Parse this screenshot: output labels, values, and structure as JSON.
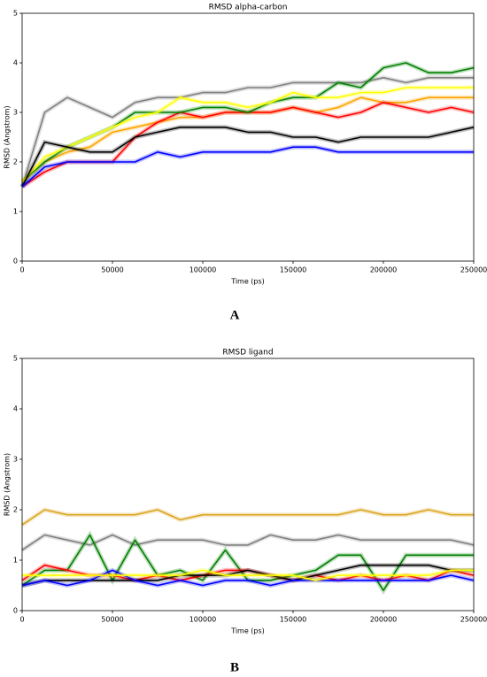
{
  "chart_data": [
    {
      "type": "line",
      "title": "RMSD alpha-carbon",
      "x_label": "Time (ps)",
      "y_label": "RMSD (Angstrom)",
      "panel_label": "A",
      "x": [
        0,
        12500,
        25000,
        37500,
        50000,
        62500,
        75000,
        87500,
        100000,
        112500,
        125000,
        137500,
        150000,
        162500,
        175000,
        187500,
        200000,
        212500,
        225000,
        237500,
        250000
      ],
      "xlim": [
        0,
        250000
      ],
      "xticks": [
        0,
        50000,
        100000,
        150000,
        200000,
        250000
      ],
      "ylim": [
        0,
        5
      ],
      "yticks": [
        0,
        1,
        2,
        3,
        4,
        5
      ],
      "series": [
        {
          "color": "#808080",
          "values": [
            1.5,
            3.0,
            3.3,
            3.1,
            2.9,
            3.2,
            3.3,
            3.3,
            3.4,
            3.4,
            3.5,
            3.5,
            3.6,
            3.6,
            3.6,
            3.6,
            3.7,
            3.6,
            3.7,
            3.7,
            3.7
          ]
        },
        {
          "color": "#ffa500",
          "values": [
            1.6,
            2.0,
            2.2,
            2.3,
            2.6,
            2.7,
            2.8,
            2.9,
            2.9,
            3.0,
            3.0,
            3.0,
            3.1,
            3.0,
            3.1,
            3.3,
            3.2,
            3.2,
            3.3,
            3.3,
            3.3
          ]
        },
        {
          "color": "#ff0000",
          "values": [
            1.5,
            1.8,
            2.0,
            2.0,
            2.0,
            2.5,
            2.8,
            3.0,
            2.9,
            3.0,
            3.0,
            3.0,
            3.1,
            3.0,
            2.9,
            3.0,
            3.2,
            3.1,
            3.0,
            3.1,
            3.0
          ]
        },
        {
          "color": "#008000",
          "values": [
            1.6,
            2.0,
            2.3,
            2.5,
            2.7,
            3.0,
            3.0,
            3.0,
            3.1,
            3.1,
            3.0,
            3.2,
            3.3,
            3.3,
            3.6,
            3.5,
            3.9,
            4.0,
            3.8,
            3.8,
            3.9
          ]
        },
        {
          "color": "#ffff00",
          "values": [
            1.6,
            2.1,
            2.3,
            2.5,
            2.7,
            2.9,
            3.0,
            3.3,
            3.2,
            3.2,
            3.1,
            3.2,
            3.4,
            3.3,
            3.3,
            3.4,
            3.4,
            3.5,
            3.5,
            3.5,
            3.5
          ]
        },
        {
          "color": "#000000",
          "values": [
            1.5,
            2.4,
            2.3,
            2.2,
            2.2,
            2.5,
            2.6,
            2.7,
            2.7,
            2.7,
            2.6,
            2.6,
            2.5,
            2.5,
            2.4,
            2.5,
            2.5,
            2.5,
            2.5,
            2.6,
            2.7
          ]
        },
        {
          "color": "#0000ff",
          "values": [
            1.5,
            1.9,
            2.0,
            2.0,
            2.0,
            2.0,
            2.2,
            2.1,
            2.2,
            2.2,
            2.2,
            2.2,
            2.3,
            2.3,
            2.2,
            2.2,
            2.2,
            2.2,
            2.2,
            2.2,
            2.2
          ]
        }
      ]
    },
    {
      "type": "line",
      "title": "RMSD ligand",
      "x_label": "Time (ps)",
      "y_label": "RMSD (Angstrom)",
      "panel_label": "B",
      "x": [
        0,
        12500,
        25000,
        37500,
        50000,
        62500,
        75000,
        87500,
        100000,
        112500,
        125000,
        137500,
        150000,
        162500,
        175000,
        187500,
        200000,
        212500,
        225000,
        237500,
        250000
      ],
      "xlim": [
        0,
        250000
      ],
      "xticks": [
        0,
        50000,
        100000,
        150000,
        200000,
        250000
      ],
      "ylim": [
        0,
        5
      ],
      "yticks": [
        0,
        1,
        2,
        3,
        4,
        5
      ],
      "series": [
        {
          "color": "#daa520",
          "values": [
            1.7,
            2.0,
            1.9,
            1.9,
            1.9,
            1.9,
            2.0,
            1.8,
            1.9,
            1.9,
            1.9,
            1.9,
            1.9,
            1.9,
            1.9,
            2.0,
            1.9,
            1.9,
            2.0,
            1.9,
            1.9
          ]
        },
        {
          "color": "#808080",
          "values": [
            1.2,
            1.5,
            1.4,
            1.3,
            1.5,
            1.3,
            1.4,
            1.4,
            1.4,
            1.3,
            1.3,
            1.5,
            1.4,
            1.4,
            1.5,
            1.4,
            1.4,
            1.4,
            1.4,
            1.4,
            1.3
          ]
        },
        {
          "color": "#008000",
          "values": [
            0.5,
            0.8,
            0.8,
            1.5,
            0.6,
            1.4,
            0.7,
            0.8,
            0.6,
            1.2,
            0.6,
            0.6,
            0.7,
            0.8,
            1.1,
            1.1,
            0.4,
            1.1,
            1.1,
            1.1,
            1.1
          ]
        },
        {
          "color": "#ff0000",
          "values": [
            0.6,
            0.9,
            0.8,
            0.7,
            0.7,
            0.6,
            0.7,
            0.6,
            0.7,
            0.8,
            0.8,
            0.7,
            0.6,
            0.7,
            0.6,
            0.7,
            0.6,
            0.7,
            0.6,
            0.8,
            0.7
          ]
        },
        {
          "color": "#000000",
          "values": [
            0.5,
            0.6,
            0.6,
            0.6,
            0.6,
            0.6,
            0.6,
            0.7,
            0.7,
            0.7,
            0.8,
            0.7,
            0.6,
            0.7,
            0.8,
            0.9,
            0.9,
            0.9,
            0.9,
            0.8,
            0.8
          ]
        },
        {
          "color": "#0000ff",
          "values": [
            0.5,
            0.6,
            0.5,
            0.6,
            0.8,
            0.6,
            0.5,
            0.6,
            0.5,
            0.6,
            0.6,
            0.5,
            0.6,
            0.6,
            0.6,
            0.6,
            0.6,
            0.6,
            0.6,
            0.7,
            0.6
          ]
        },
        {
          "color": "#ffff00",
          "values": [
            0.7,
            0.7,
            0.7,
            0.7,
            0.7,
            0.7,
            0.7,
            0.7,
            0.8,
            0.7,
            0.7,
            0.7,
            0.7,
            0.6,
            0.7,
            0.7,
            0.7,
            0.7,
            0.7,
            0.8,
            0.8
          ]
        }
      ]
    }
  ]
}
